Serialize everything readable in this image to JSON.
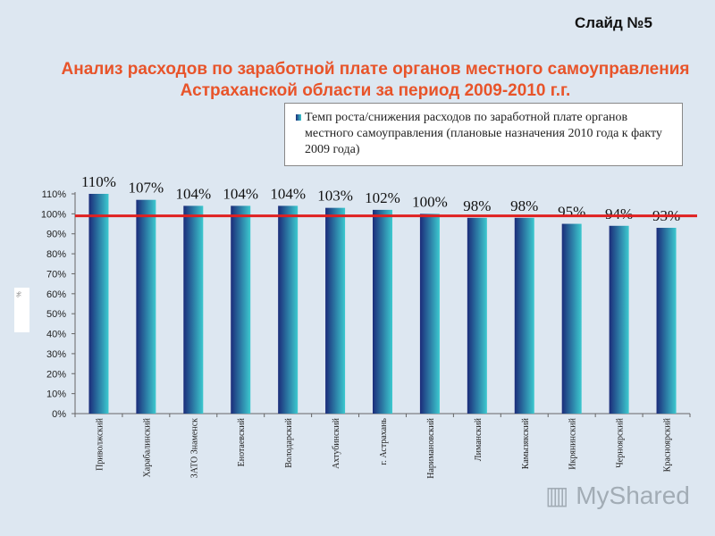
{
  "slide_label": "Слайд №5",
  "title": "Анализ расходов по заработной плате органов местного самоуправления Астраханской области за период 2009-2010 г.г.",
  "watermark": "MyShared",
  "chart_data": {
    "type": "bar",
    "title": "",
    "ylabel": "%",
    "xlabel": "",
    "ylim": [
      0,
      110
    ],
    "yticks": [
      "0%",
      "10%",
      "20%",
      "30%",
      "40%",
      "50%",
      "60%",
      "70%",
      "80%",
      "90%",
      "100%",
      "110%"
    ],
    "categories": [
      "Приволжский",
      "Харабалинский",
      "ЗАТО Знаменск",
      "Енотаевский",
      "Володарский",
      "Ахтубинский",
      "г. Астрахань",
      "Наримановский",
      "Лиманский",
      "Камызякский",
      "Икрянинский",
      "Черноярский",
      "Красноярский"
    ],
    "series": [
      {
        "name": "Темп роста/снижения расходов по заработной плате органов местного самоуправления  (плановые назначения 2010 года к факту 2009 года)",
        "values": [
          110,
          107,
          104,
          104,
          104,
          103,
          102,
          100,
          98,
          98,
          95,
          94,
          93
        ],
        "labels": [
          "110%",
          "107%",
          "104%",
          "104%",
          "104%",
          "103%",
          "102%",
          "100%",
          "98%",
          "98%",
          "95%",
          "94%",
          "93%"
        ]
      }
    ],
    "reference_line": 99,
    "legend_position": "top-right",
    "grid": false,
    "colors": {
      "bar_dark": "#1b2c7a",
      "bar_light": "#3cc9cf",
      "reference_line": "#e02020",
      "title": "#e8542a"
    }
  }
}
